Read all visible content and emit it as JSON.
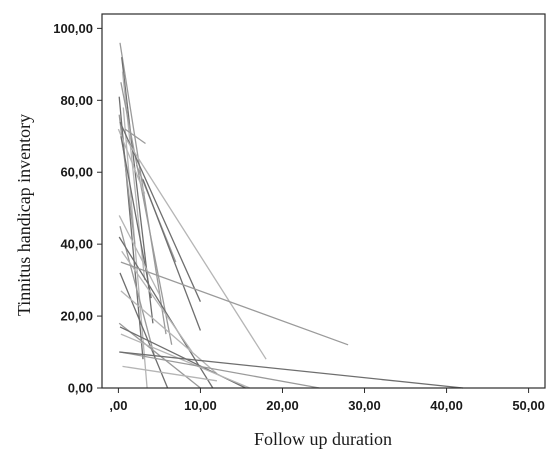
{
  "chart_data": {
    "type": "line",
    "title": "",
    "xlabel": "Follow up duration",
    "ylabel": "Tinnitus handicap inventory",
    "xlim": [
      -2,
      52
    ],
    "ylim": [
      0,
      104
    ],
    "grid": false,
    "legend": "none",
    "x_ticks": [
      {
        "value": 0,
        "label": ",00"
      },
      {
        "value": 10,
        "label": "10,00"
      },
      {
        "value": 20,
        "label": "20,00"
      },
      {
        "value": 30,
        "label": "30,00"
      },
      {
        "value": 40,
        "label": "40,00"
      },
      {
        "value": 50,
        "label": "50,00"
      }
    ],
    "y_ticks": [
      {
        "value": 0,
        "label": "0,00"
      },
      {
        "value": 20,
        "label": "20,00"
      },
      {
        "value": 40,
        "label": "40,00"
      },
      {
        "value": 60,
        "label": "60,00"
      },
      {
        "value": 80,
        "label": "80,00"
      },
      {
        "value": 100,
        "label": "100,00"
      }
    ],
    "line_colors": [
      "#9a9a9a",
      "#6e6e6e",
      "#b5b5b5"
    ],
    "series": [
      {
        "x": [
          0.2,
          5.8
        ],
        "y": [
          96,
          15
        ]
      },
      {
        "x": [
          0.4,
          4.2
        ],
        "y": [
          92,
          18
        ]
      },
      {
        "x": [
          0.5,
          3.2
        ],
        "y": [
          88,
          30
        ]
      },
      {
        "x": [
          0.3,
          6.5
        ],
        "y": [
          85,
          12
        ]
      },
      {
        "x": [
          0.1,
          3.0
        ],
        "y": [
          81,
          8
        ]
      },
      {
        "x": [
          0.6,
          3.5
        ],
        "y": [
          78,
          0
        ]
      },
      {
        "x": [
          0.1,
          2.0
        ],
        "y": [
          76,
          40
        ]
      },
      {
        "x": [
          0.2,
          10.0
        ],
        "y": [
          74,
          24
        ]
      },
      {
        "x": [
          0.0,
          3.2
        ],
        "y": [
          72,
          54
        ]
      },
      {
        "x": [
          0.8,
          3.3
        ],
        "y": [
          72,
          68
        ]
      },
      {
        "x": [
          0.3,
          4.0
        ],
        "y": [
          70,
          25
        ]
      },
      {
        "x": [
          1.0,
          18.0
        ],
        "y": [
          69,
          8
        ]
      },
      {
        "x": [
          2.2,
          7.0
        ],
        "y": [
          62,
          35
        ]
      },
      {
        "x": [
          3.0,
          10.0
        ],
        "y": [
          58,
          16
        ]
      },
      {
        "x": [
          0.1,
          5.0
        ],
        "y": [
          48,
          26
        ]
      },
      {
        "x": [
          0.2,
          4.5
        ],
        "y": [
          45,
          8
        ]
      },
      {
        "x": [
          0.1,
          11.5
        ],
        "y": [
          42,
          0
        ]
      },
      {
        "x": [
          0.4,
          9.0
        ],
        "y": [
          38,
          10
        ]
      },
      {
        "x": [
          0.3,
          28.0
        ],
        "y": [
          35,
          12
        ]
      },
      {
        "x": [
          0.2,
          6.0
        ],
        "y": [
          32,
          0
        ]
      },
      {
        "x": [
          0.3,
          12.0
        ],
        "y": [
          27,
          4
        ]
      },
      {
        "x": [
          0.1,
          10.0
        ],
        "y": [
          18,
          0
        ]
      },
      {
        "x": [
          0.2,
          15.5
        ],
        "y": [
          17,
          0
        ]
      },
      {
        "x": [
          0.3,
          16.0
        ],
        "y": [
          15,
          0
        ]
      },
      {
        "x": [
          0.2,
          24.5
        ],
        "y": [
          10,
          0
        ]
      },
      {
        "x": [
          0.1,
          42.0
        ],
        "y": [
          10,
          0
        ]
      },
      {
        "x": [
          0.5,
          12.0
        ],
        "y": [
          6,
          2
        ]
      }
    ]
  }
}
